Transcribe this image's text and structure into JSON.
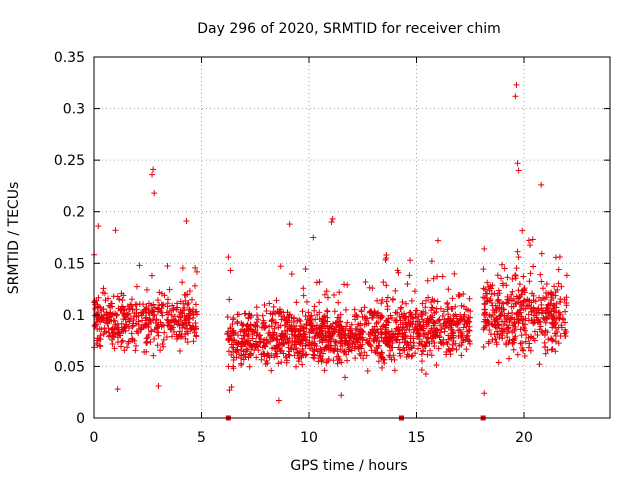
{
  "chart_data": {
    "type": "scatter",
    "title": "Day 296 of 2020, SRMTID for receiver chim",
    "xlabel": "GPS time / hours",
    "ylabel": "SRMTID / TECUs",
    "xlim": [
      0,
      24
    ],
    "ylim": [
      0,
      0.35
    ],
    "xticks": [
      0,
      5,
      10,
      15,
      20
    ],
    "yticks": [
      0,
      0.05,
      0.1,
      0.15,
      0.2,
      0.25,
      0.3,
      0.35
    ],
    "xtick_labels": [
      "0",
      "5",
      "10",
      "15",
      "20"
    ],
    "ytick_labels": [
      "0",
      "0.05",
      "0.1",
      "0.15",
      "0.2",
      "0.25",
      "0.3",
      "0.35"
    ],
    "grid": true,
    "marker": "+",
    "series": [
      {
        "name": "SRMTID",
        "color": "#e8000b",
        "segments": [
          {
            "x_start": 0.0,
            "x_end": 4.8,
            "y_center": 0.095,
            "y_spread": 0.035,
            "n": 420
          },
          {
            "x_start": 6.2,
            "x_end": 8.0,
            "y_center": 0.075,
            "y_spread": 0.03,
            "n": 180
          },
          {
            "x_start": 8.0,
            "x_end": 14.0,
            "y_center": 0.08,
            "y_spread": 0.035,
            "n": 700
          },
          {
            "x_start": 14.0,
            "x_end": 17.5,
            "y_center": 0.085,
            "y_spread": 0.035,
            "n": 380
          },
          {
            "x_start": 18.1,
            "x_end": 22.0,
            "y_center": 0.1,
            "y_spread": 0.045,
            "n": 420
          }
        ],
        "highlights": [
          {
            "x": 19.65,
            "y": 0.323
          },
          {
            "x": 19.6,
            "y": 0.312
          },
          {
            "x": 19.7,
            "y": 0.247
          },
          {
            "x": 19.75,
            "y": 0.24
          },
          {
            "x": 2.75,
            "y": 0.241
          },
          {
            "x": 2.7,
            "y": 0.236
          },
          {
            "x": 2.8,
            "y": 0.218
          },
          {
            "x": 20.8,
            "y": 0.226
          },
          {
            "x": 11.1,
            "y": 0.193
          },
          {
            "x": 11.05,
            "y": 0.19
          },
          {
            "x": 9.1,
            "y": 0.188
          },
          {
            "x": 4.3,
            "y": 0.191
          },
          {
            "x": 16.0,
            "y": 0.172
          },
          {
            "x": 1.0,
            "y": 0.182
          },
          {
            "x": 0.2,
            "y": 0.186
          },
          {
            "x": 8.6,
            "y": 0.017
          },
          {
            "x": 11.5,
            "y": 0.022
          },
          {
            "x": 6.25,
            "y": 0.156
          },
          {
            "x": 6.35,
            "y": 0.143
          },
          {
            "x": 18.15,
            "y": 0.024
          },
          {
            "x": 1.1,
            "y": 0.028
          },
          {
            "x": 3.0,
            "y": 0.031
          },
          {
            "x": 6.3,
            "y": 0.027
          },
          {
            "x": 6.4,
            "y": 0.03
          },
          {
            "x": 10.2,
            "y": 0.175
          },
          {
            "x": 13.6,
            "y": 0.158
          },
          {
            "x": 14.7,
            "y": 0.153
          }
        ],
        "baseline_markers": [
          6.25,
          14.3,
          18.1
        ]
      }
    ]
  }
}
